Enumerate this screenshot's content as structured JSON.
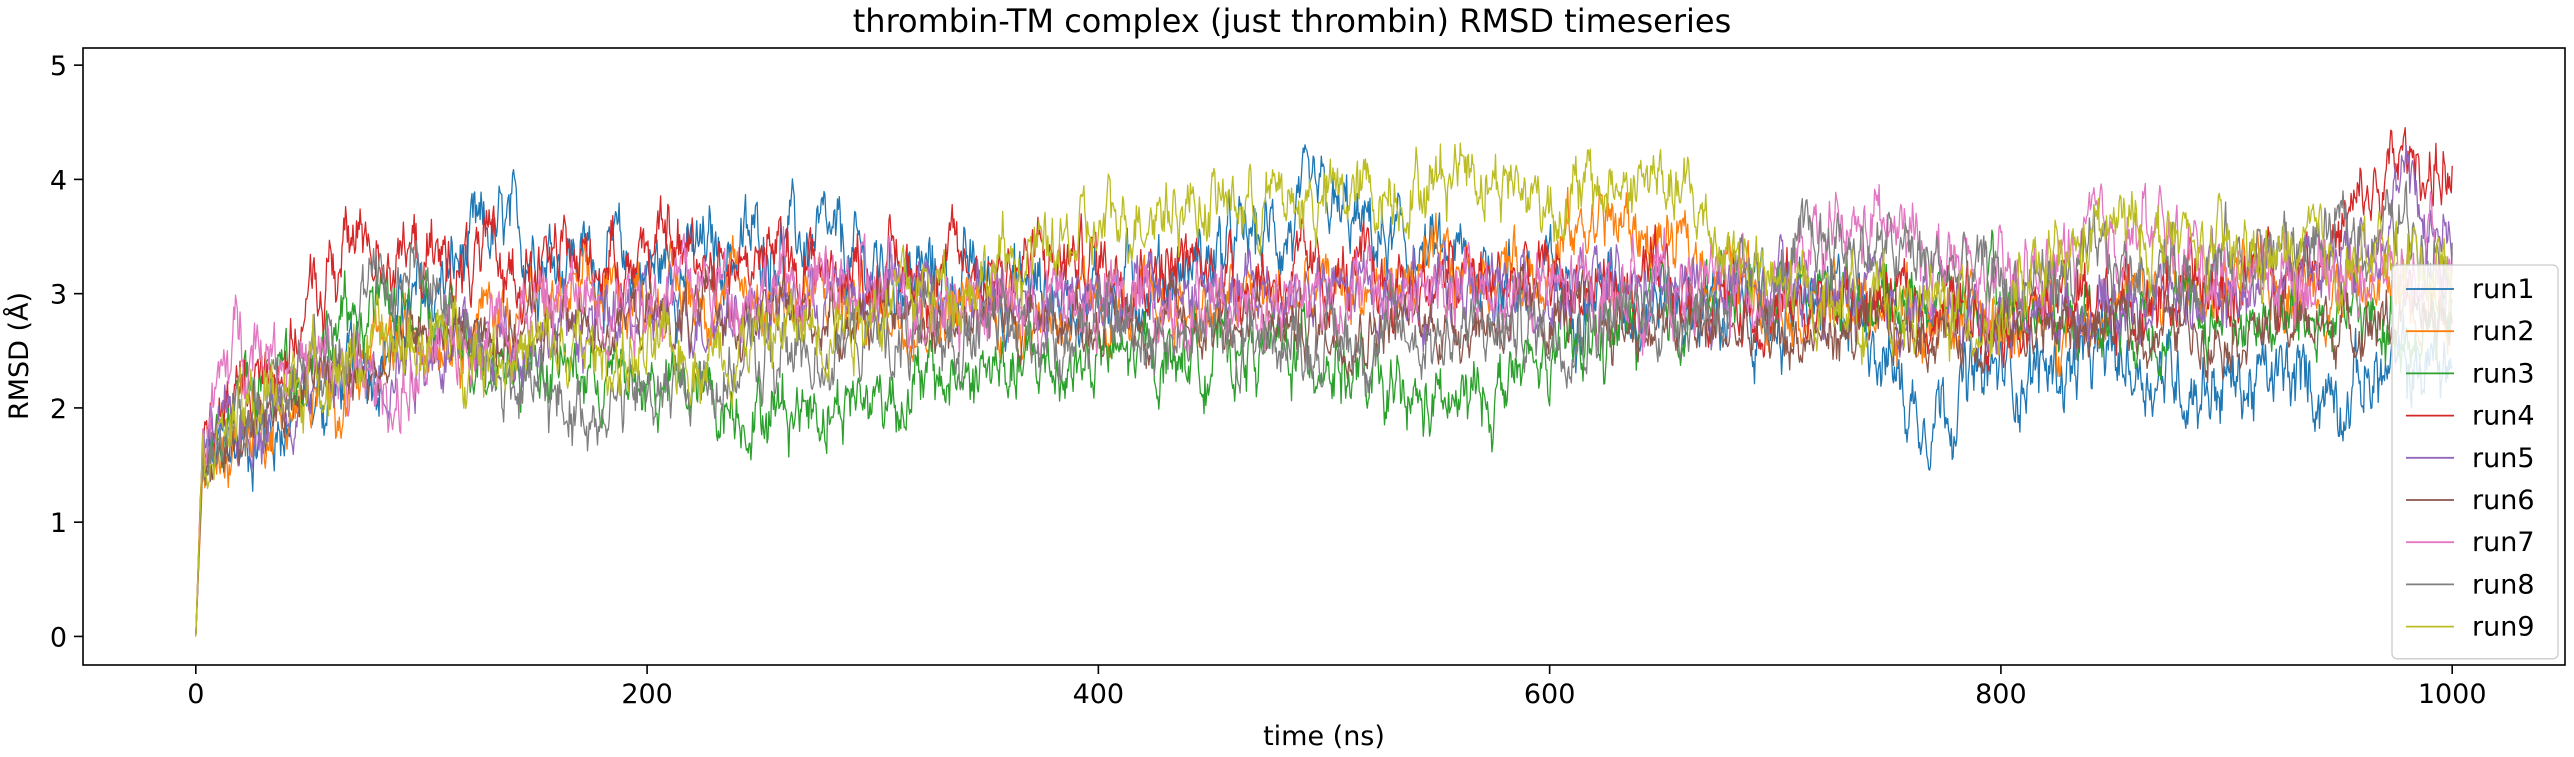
{
  "chart_data": {
    "type": "line",
    "title": "thrombin-TM complex (just thrombin) RMSD timeseries",
    "xlabel": "time (ns)",
    "ylabel": "RMSD (Å)",
    "xlim": [
      -50,
      1050
    ],
    "ylim": [
      -0.25,
      5.15
    ],
    "xticks": [
      0,
      200,
      400,
      600,
      800,
      1000
    ],
    "yticks": [
      0,
      1,
      2,
      3,
      4,
      5
    ],
    "grid": false,
    "legend_position": "right",
    "series": [
      {
        "name": "run1",
        "color": "#1f77b4",
        "noise": 0.33,
        "x": [
          0,
          3,
          20,
          60,
          100,
          130,
          160,
          200,
          260,
          300,
          400,
          450,
          500,
          540,
          600,
          700,
          740,
          760,
          800,
          850,
          900,
          950,
          1000
        ],
        "y": [
          0,
          1.5,
          1.7,
          2.1,
          2.9,
          3.5,
          3.4,
          3.2,
          3.5,
          3.2,
          3.0,
          3.3,
          3.7,
          3.3,
          3.1,
          2.8,
          2.9,
          2.0,
          2.3,
          2.4,
          2.2,
          2.2,
          2.4
        ]
      },
      {
        "name": "run2",
        "color": "#ff7f0e",
        "noise": 0.28,
        "x": [
          0,
          3,
          20,
          60,
          100,
          150,
          200,
          250,
          300,
          400,
          500,
          600,
          620,
          700,
          760,
          800,
          900,
          1000
        ],
        "y": [
          0,
          1.4,
          1.8,
          2.1,
          2.7,
          2.9,
          3.0,
          3.0,
          2.9,
          2.8,
          3.0,
          3.3,
          3.7,
          3.0,
          2.8,
          2.7,
          3.1,
          3.0
        ]
      },
      {
        "name": "run3",
        "color": "#2ca02c",
        "noise": 0.3,
        "x": [
          0,
          3,
          40,
          80,
          130,
          200,
          250,
          300,
          350,
          400,
          450,
          500,
          530,
          560,
          600,
          650,
          700,
          800,
          900,
          1000
        ],
        "y": [
          0,
          1.7,
          2.4,
          2.9,
          2.5,
          2.2,
          2.0,
          2.1,
          2.3,
          2.4,
          2.5,
          2.5,
          2.0,
          2.0,
          2.4,
          2.8,
          3.1,
          2.9,
          2.8,
          2.7
        ]
      },
      {
        "name": "run4",
        "color": "#d62728",
        "noise": 0.3,
        "x": [
          0,
          3,
          40,
          70,
          100,
          150,
          200,
          300,
          400,
          500,
          600,
          700,
          800,
          900,
          950,
          980,
          1000
        ],
        "y": [
          0,
          1.8,
          2.5,
          3.5,
          3.3,
          3.2,
          3.4,
          3.2,
          3.3,
          3.1,
          3.1,
          2.9,
          2.9,
          3.0,
          3.5,
          4.2,
          4.0
        ]
      },
      {
        "name": "run5",
        "color": "#9467bd",
        "noise": 0.28,
        "x": [
          0,
          3,
          50,
          100,
          200,
          300,
          400,
          500,
          600,
          700,
          800,
          900,
          960,
          980,
          1000
        ],
        "y": [
          0,
          1.6,
          2.2,
          2.5,
          2.8,
          3.0,
          3.0,
          3.0,
          3.0,
          3.0,
          2.8,
          3.0,
          3.5,
          3.9,
          3.4
        ]
      },
      {
        "name": "run6",
        "color": "#8c564b",
        "noise": 0.25,
        "x": [
          0,
          3,
          50,
          100,
          200,
          300,
          400,
          500,
          600,
          700,
          800,
          900,
          1000
        ],
        "y": [
          0,
          1.5,
          2.2,
          2.6,
          2.8,
          2.8,
          2.8,
          2.7,
          2.8,
          2.6,
          2.7,
          2.7,
          2.8
        ]
      },
      {
        "name": "run7",
        "color": "#e377c2",
        "noise": 0.32,
        "x": [
          0,
          3,
          20,
          60,
          90,
          130,
          180,
          250,
          300,
          400,
          500,
          600,
          700,
          745,
          800,
          860,
          900,
          1000
        ],
        "y": [
          0,
          1.7,
          2.7,
          2.3,
          2.1,
          2.8,
          3.0,
          3.1,
          3.0,
          2.9,
          3.0,
          3.0,
          3.1,
          3.6,
          3.0,
          3.6,
          3.2,
          3.2
        ]
      },
      {
        "name": "run8",
        "color": "#7f7f7f",
        "noise": 0.3,
        "x": [
          0,
          3,
          50,
          100,
          130,
          160,
          200,
          250,
          300,
          400,
          500,
          600,
          700,
          720,
          800,
          900,
          980,
          1000
        ],
        "y": [
          0,
          1.6,
          2.5,
          3.3,
          2.3,
          2.0,
          2.1,
          2.4,
          2.6,
          2.7,
          2.6,
          2.7,
          3.0,
          3.5,
          3.1,
          3.3,
          3.6,
          3.4
        ]
      },
      {
        "name": "run9",
        "color": "#bcbd22",
        "noise": 0.3,
        "x": [
          0,
          3,
          50,
          100,
          150,
          200,
          250,
          300,
          350,
          400,
          420,
          500,
          550,
          560,
          600,
          650,
          700,
          800,
          850,
          900,
          1000
        ],
        "y": [
          0,
          1.7,
          2.3,
          2.6,
          2.5,
          2.4,
          2.6,
          2.9,
          3.2,
          3.5,
          3.8,
          3.8,
          4.0,
          4.2,
          3.8,
          4.0,
          3.0,
          2.8,
          3.6,
          3.3,
          3.3
        ]
      }
    ]
  }
}
